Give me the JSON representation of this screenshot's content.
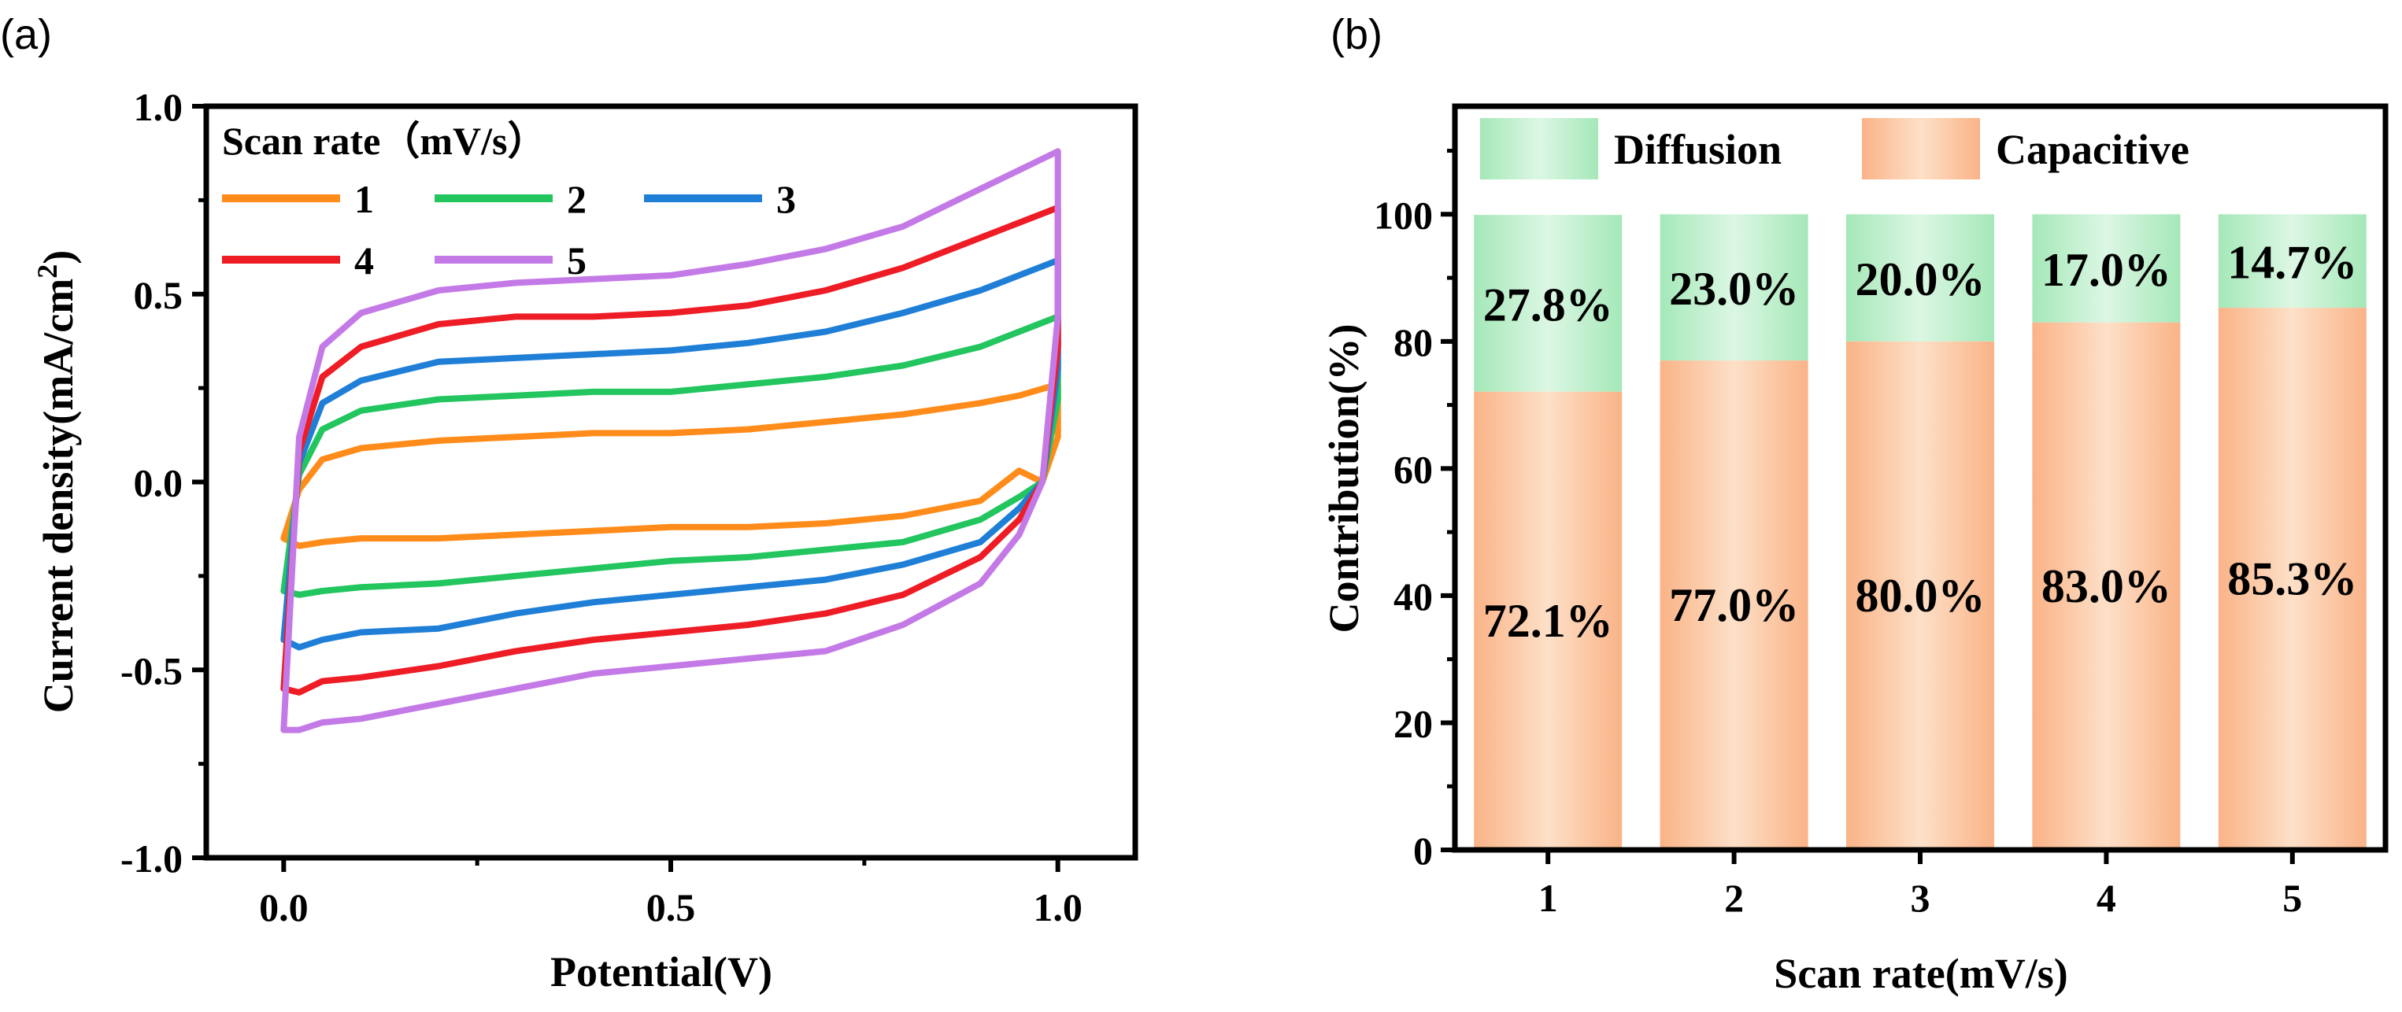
{
  "colors": {
    "s1": "#ff8c1a",
    "s2": "#22c55e",
    "s3": "#1f7fd6",
    "s4": "#ee1c25",
    "s5": "#c47ae6",
    "diffusion": "#bfeccc",
    "capacitive": "#fcc9a1",
    "axis": "#000000"
  },
  "chart_data": [
    {
      "panel_label": "(a)",
      "type": "line",
      "title": "",
      "xlabel": "Potential(V)",
      "ylabel": "Current density(mA/cm",
      "ylabel_sup": "2",
      "ylabel_close": ")",
      "xlim": [
        -0.1,
        1.1
      ],
      "ylim": [
        -1.0,
        1.0
      ],
      "x_ticks": [
        0.0,
        0.5,
        1.0
      ],
      "x_tick_labels": [
        "0.0",
        "0.5",
        "1.0"
      ],
      "y_ticks": [
        -1.0,
        -0.5,
        0.0,
        0.5,
        1.0
      ],
      "y_tick_labels": [
        "-1.0",
        "-0.5",
        "0.0",
        "0.5",
        "1.0"
      ],
      "legend_title": "Scan rate（mV/s）",
      "legend_position": "top-left",
      "series": [
        {
          "name": "1",
          "color_key": "s1",
          "x": [
            0.0,
            0.02,
            0.05,
            0.1,
            0.2,
            0.3,
            0.4,
            0.5,
            0.6,
            0.7,
            0.8,
            0.9,
            0.95,
            1.0,
            1.0,
            0.98,
            0.95,
            0.9,
            0.8,
            0.7,
            0.6,
            0.5,
            0.4,
            0.3,
            0.2,
            0.1,
            0.05,
            0.02,
            0.0
          ],
          "y": [
            -0.15,
            -0.02,
            0.06,
            0.09,
            0.11,
            0.12,
            0.13,
            0.13,
            0.14,
            0.16,
            0.18,
            0.21,
            0.23,
            0.26,
            0.12,
            0.0,
            0.03,
            -0.05,
            -0.09,
            -0.11,
            -0.12,
            -0.12,
            -0.13,
            -0.14,
            -0.15,
            -0.15,
            -0.16,
            -0.17,
            -0.15
          ]
        },
        {
          "name": "2",
          "color_key": "s2",
          "x": [
            0.0,
            0.02,
            0.05,
            0.1,
            0.2,
            0.3,
            0.4,
            0.5,
            0.6,
            0.7,
            0.8,
            0.9,
            0.95,
            1.0,
            1.0,
            0.98,
            0.95,
            0.9,
            0.8,
            0.7,
            0.6,
            0.5,
            0.4,
            0.3,
            0.2,
            0.1,
            0.05,
            0.02,
            0.0
          ],
          "y": [
            -0.29,
            0.02,
            0.14,
            0.19,
            0.22,
            0.23,
            0.24,
            0.24,
            0.26,
            0.28,
            0.31,
            0.36,
            0.4,
            0.44,
            0.22,
            0.0,
            -0.04,
            -0.1,
            -0.16,
            -0.18,
            -0.2,
            -0.21,
            -0.23,
            -0.25,
            -0.27,
            -0.28,
            -0.29,
            -0.3,
            -0.29
          ]
        },
        {
          "name": "3",
          "color_key": "s3",
          "x": [
            0.0,
            0.02,
            0.05,
            0.1,
            0.2,
            0.3,
            0.4,
            0.5,
            0.6,
            0.7,
            0.8,
            0.9,
            0.95,
            1.0,
            1.0,
            0.98,
            0.95,
            0.9,
            0.8,
            0.7,
            0.6,
            0.5,
            0.4,
            0.3,
            0.2,
            0.1,
            0.05,
            0.02,
            0.0
          ],
          "y": [
            -0.42,
            0.05,
            0.21,
            0.27,
            0.32,
            0.33,
            0.34,
            0.35,
            0.37,
            0.4,
            0.45,
            0.51,
            0.55,
            0.59,
            0.3,
            0.0,
            -0.07,
            -0.16,
            -0.22,
            -0.26,
            -0.28,
            -0.3,
            -0.32,
            -0.35,
            -0.39,
            -0.4,
            -0.42,
            -0.44,
            -0.42
          ]
        },
        {
          "name": "4",
          "color_key": "s4",
          "x": [
            0.0,
            0.02,
            0.05,
            0.1,
            0.2,
            0.3,
            0.4,
            0.5,
            0.6,
            0.7,
            0.8,
            0.9,
            0.95,
            1.0,
            1.0,
            0.98,
            0.95,
            0.9,
            0.8,
            0.7,
            0.6,
            0.5,
            0.4,
            0.3,
            0.2,
            0.1,
            0.05,
            0.02,
            0.0
          ],
          "y": [
            -0.55,
            0.08,
            0.28,
            0.36,
            0.42,
            0.44,
            0.44,
            0.45,
            0.47,
            0.51,
            0.57,
            0.65,
            0.69,
            0.73,
            0.36,
            0.0,
            -0.1,
            -0.2,
            -0.3,
            -0.35,
            -0.38,
            -0.4,
            -0.42,
            -0.45,
            -0.49,
            -0.52,
            -0.53,
            -0.56,
            -0.55
          ]
        },
        {
          "name": "5",
          "color_key": "s5",
          "x": [
            0.0,
            0.02,
            0.05,
            0.1,
            0.2,
            0.3,
            0.4,
            0.5,
            0.6,
            0.7,
            0.8,
            0.9,
            0.95,
            1.0,
            1.0,
            0.98,
            0.95,
            0.9,
            0.8,
            0.7,
            0.6,
            0.5,
            0.4,
            0.3,
            0.2,
            0.1,
            0.05,
            0.02,
            0.0
          ],
          "y": [
            -0.66,
            0.12,
            0.36,
            0.45,
            0.51,
            0.53,
            0.54,
            0.55,
            0.58,
            0.62,
            0.68,
            0.78,
            0.83,
            0.88,
            0.44,
            0.0,
            -0.14,
            -0.27,
            -0.38,
            -0.45,
            -0.47,
            -0.49,
            -0.51,
            -0.55,
            -0.59,
            -0.63,
            -0.64,
            -0.66,
            -0.66
          ]
        }
      ]
    },
    {
      "panel_label": "(b)",
      "type": "bar",
      "stacked": true,
      "title": "",
      "xlabel": "Scan rate(mV/s)",
      "ylabel": "Contribution(%)",
      "ylim": [
        0,
        117
      ],
      "y_ticks": [
        0,
        20,
        40,
        60,
        80,
        100
      ],
      "y_tick_labels": [
        "0",
        "20",
        "40",
        "60",
        "80",
        "100"
      ],
      "categories": [
        "1",
        "2",
        "3",
        "4",
        "5"
      ],
      "legend_position": "top",
      "series": [
        {
          "name": "Capacitive",
          "color_key": "capacitive",
          "values": [
            72.1,
            77.0,
            80.0,
            83.0,
            85.3
          ],
          "labels": [
            "72.1%",
            "77.0%",
            "80.0%",
            "83.0%",
            "85.3%"
          ]
        },
        {
          "name": "Diffusion",
          "color_key": "diffusion",
          "values": [
            27.8,
            23.0,
            20.0,
            17.0,
            14.7
          ],
          "labels": [
            "27.8%",
            "23.0%",
            "20.0%",
            "17.0%",
            "14.7%"
          ]
        }
      ]
    }
  ]
}
